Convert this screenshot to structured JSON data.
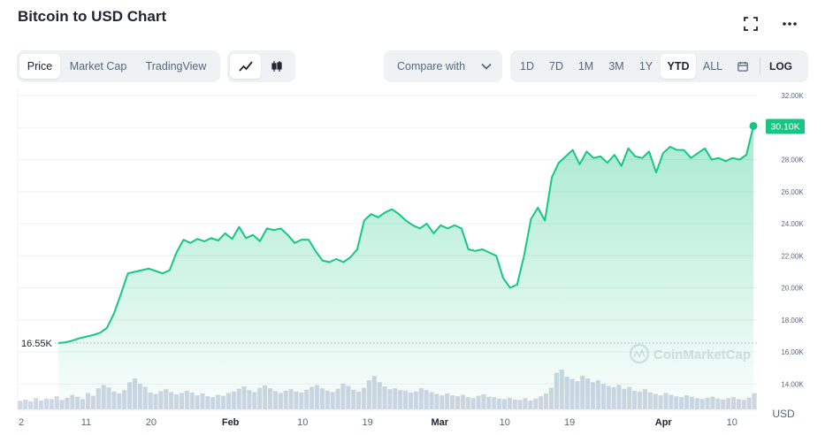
{
  "header": {
    "title": "Bitcoin to USD Chart",
    "expand_icon": "fullscreen-icon",
    "more_icon": "more-horizontal-icon"
  },
  "view_tabs": [
    {
      "label": "Price",
      "active": true
    },
    {
      "label": "Market Cap",
      "active": false
    },
    {
      "label": "TradingView",
      "active": false
    }
  ],
  "chart_type_buttons": [
    {
      "icon": "line-chart-icon",
      "active": true
    },
    {
      "icon": "candlestick-icon",
      "active": false
    }
  ],
  "compare": {
    "label": "Compare with",
    "icon": "chevron-down-icon"
  },
  "ranges": [
    {
      "label": "1D",
      "active": false
    },
    {
      "label": "7D",
      "active": false
    },
    {
      "label": "1M",
      "active": false
    },
    {
      "label": "3M",
      "active": false
    },
    {
      "label": "1Y",
      "active": false
    },
    {
      "label": "YTD",
      "active": true
    },
    {
      "label": "ALL",
      "active": false
    }
  ],
  "calendar_icon": "calendar-icon",
  "log_label": "LOG",
  "colors": {
    "line": "#16c784",
    "volume": "#cfd6e4",
    "badge": "#16c784",
    "text": "#58667e"
  },
  "chart_data": {
    "type": "area",
    "series": [
      {
        "values": [
          16.55,
          16.6,
          16.7,
          16.85,
          16.95,
          17.05,
          17.2,
          17.5,
          18.4,
          19.6,
          20.9,
          21.0,
          21.1,
          21.2,
          21.05,
          20.9,
          21.1,
          22.2,
          23.0,
          22.8,
          23.05,
          22.9,
          23.1,
          22.95,
          23.4,
          23.05,
          23.8,
          23.1,
          23.3,
          22.9,
          23.7,
          23.6,
          23.7,
          23.3,
          22.8,
          23.0,
          23.0,
          22.3,
          21.7,
          21.6,
          21.8,
          21.6,
          21.9,
          22.4,
          24.2,
          24.6,
          24.4,
          24.7,
          24.9,
          24.6,
          24.2,
          23.9,
          23.7,
          24.0,
          23.4,
          23.9,
          23.7,
          23.9,
          23.7,
          22.4,
          22.3,
          22.4,
          22.2,
          22.0,
          20.6,
          20.0,
          20.2,
          22.0,
          24.3,
          25.0,
          24.2,
          26.9,
          27.8,
          28.2,
          28.6,
          27.7,
          28.5,
          28.1,
          28.2,
          27.8,
          28.3,
          27.6,
          28.7,
          28.2,
          28.1,
          28.5,
          27.2,
          28.4,
          28.8,
          28.6,
          28.6,
          28.1,
          28.4,
          28.7,
          28.0,
          28.1,
          27.9,
          28.1,
          28.0,
          28.3,
          30.1
        ]
      }
    ],
    "volume": [
      0.18,
      0.21,
      0.17,
      0.24,
      0.19,
      0.23,
      0.22,
      0.28,
      0.2,
      0.25,
      0.31,
      0.27,
      0.22,
      0.35,
      0.29,
      0.45,
      0.52,
      0.47,
      0.38,
      0.34,
      0.41,
      0.58,
      0.66,
      0.55,
      0.48,
      0.36,
      0.33,
      0.39,
      0.43,
      0.37,
      0.32,
      0.35,
      0.4,
      0.36,
      0.3,
      0.34,
      0.28,
      0.26,
      0.31,
      0.29,
      0.35,
      0.38,
      0.44,
      0.49,
      0.41,
      0.37,
      0.46,
      0.51,
      0.45,
      0.39,
      0.35,
      0.4,
      0.43,
      0.38,
      0.36,
      0.42,
      0.48,
      0.52,
      0.45,
      0.4,
      0.37,
      0.44,
      0.55,
      0.5,
      0.42,
      0.38,
      0.46,
      0.62,
      0.71,
      0.58,
      0.49,
      0.43,
      0.45,
      0.41,
      0.4,
      0.36,
      0.38,
      0.45,
      0.41,
      0.37,
      0.33,
      0.3,
      0.34,
      0.3,
      0.28,
      0.31,
      0.26,
      0.24,
      0.29,
      0.32,
      0.27,
      0.26,
      0.23,
      0.22,
      0.25,
      0.21,
      0.2,
      0.24,
      0.19,
      0.23,
      0.28,
      0.34,
      0.46,
      0.78,
      0.85,
      0.7,
      0.65,
      0.6,
      0.72,
      0.66,
      0.58,
      0.62,
      0.55,
      0.5,
      0.47,
      0.52,
      0.44,
      0.48,
      0.4,
      0.38,
      0.43,
      0.36,
      0.33,
      0.3,
      0.35,
      0.31,
      0.28,
      0.26,
      0.3,
      0.27,
      0.24,
      0.22,
      0.25,
      0.27,
      0.23,
      0.21,
      0.24,
      0.26,
      0.22,
      0.2,
      0.25,
      0.35
    ],
    "ylim": [
      14.6,
      32.0
    ],
    "y_ticks": [
      "32.00K",
      "30.00K",
      "28.00K",
      "26.00K",
      "24.00K",
      "22.00K",
      "20.00K",
      "18.00K",
      "16.00K",
      "14.00K"
    ],
    "y_tick_values": [
      32,
      30,
      28,
      26,
      24,
      22,
      20,
      18,
      16,
      14
    ],
    "x_ticks": [
      {
        "label": "2",
        "t": 0.0
      },
      {
        "label": "11",
        "t": 0.09
      },
      {
        "label": "20",
        "t": 0.18
      },
      {
        "label": "Feb",
        "t": 0.29
      },
      {
        "label": "10",
        "t": 0.39
      },
      {
        "label": "19",
        "t": 0.48
      },
      {
        "label": "Mar",
        "t": 0.58
      },
      {
        "label": "10",
        "t": 0.67
      },
      {
        "label": "19",
        "t": 0.76
      },
      {
        "label": "Apr",
        "t": 0.89
      },
      {
        "label": "10",
        "t": 0.985
      }
    ],
    "start_label": "16.55K",
    "current_label": "30.10K",
    "currency_label": "USD",
    "watermark": "CoinMarketCap"
  }
}
